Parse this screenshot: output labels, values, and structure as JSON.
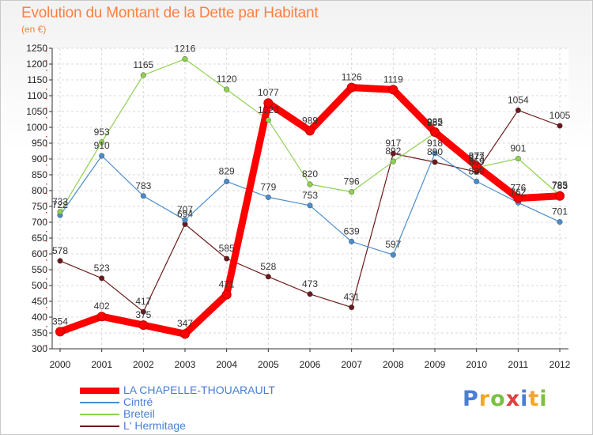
{
  "header": {
    "title": "Evolution du Montant de la Dette par Habitant",
    "subtitle": "(en €)"
  },
  "logo": {
    "text": "Proxiti",
    "colors": [
      "#4a7fd4",
      "#f5a623",
      "#7ac143",
      "#e04040",
      "#4a7fd4",
      "#f5a623",
      "#7ac143"
    ]
  },
  "chart_data": {
    "type": "line",
    "x": [
      "2000",
      "2001",
      "2002",
      "2003",
      "2004",
      "2005",
      "2006",
      "2007",
      "2008",
      "2009",
      "2010",
      "2011",
      "2012"
    ],
    "ylim": [
      300,
      1250
    ],
    "yticks": [
      300,
      350,
      400,
      450,
      500,
      550,
      600,
      650,
      700,
      750,
      800,
      850,
      900,
      950,
      1000,
      1050,
      1100,
      1150,
      1200,
      1250
    ],
    "grid": true,
    "legend_position": "bottom-left",
    "series": [
      {
        "name": "LA CHAPELLE-THOUARAULT",
        "color": "#ff0000",
        "values": [
          354,
          402,
          375,
          347,
          471,
          1077,
          989,
          1126,
          1119,
          985,
          877,
          776,
          783
        ]
      },
      {
        "name": "Cintré",
        "color": "#4a8dcc",
        "values": [
          722,
          910,
          783,
          707,
          829,
          779,
          753,
          639,
          597,
          918,
          829,
          762,
          701
        ]
      },
      {
        "name": "Breteil",
        "color": "#8fd14f",
        "values": [
          733,
          953,
          1165,
          1216,
          1120,
          1023,
          820,
          796,
          892,
          982,
          873,
          901,
          785
        ]
      },
      {
        "name": "L' Hermitage",
        "color": "#6b1a1a",
        "values": [
          578,
          523,
          417,
          694,
          585,
          528,
          473,
          431,
          917,
          890,
          859,
          1054,
          1005
        ]
      }
    ]
  }
}
